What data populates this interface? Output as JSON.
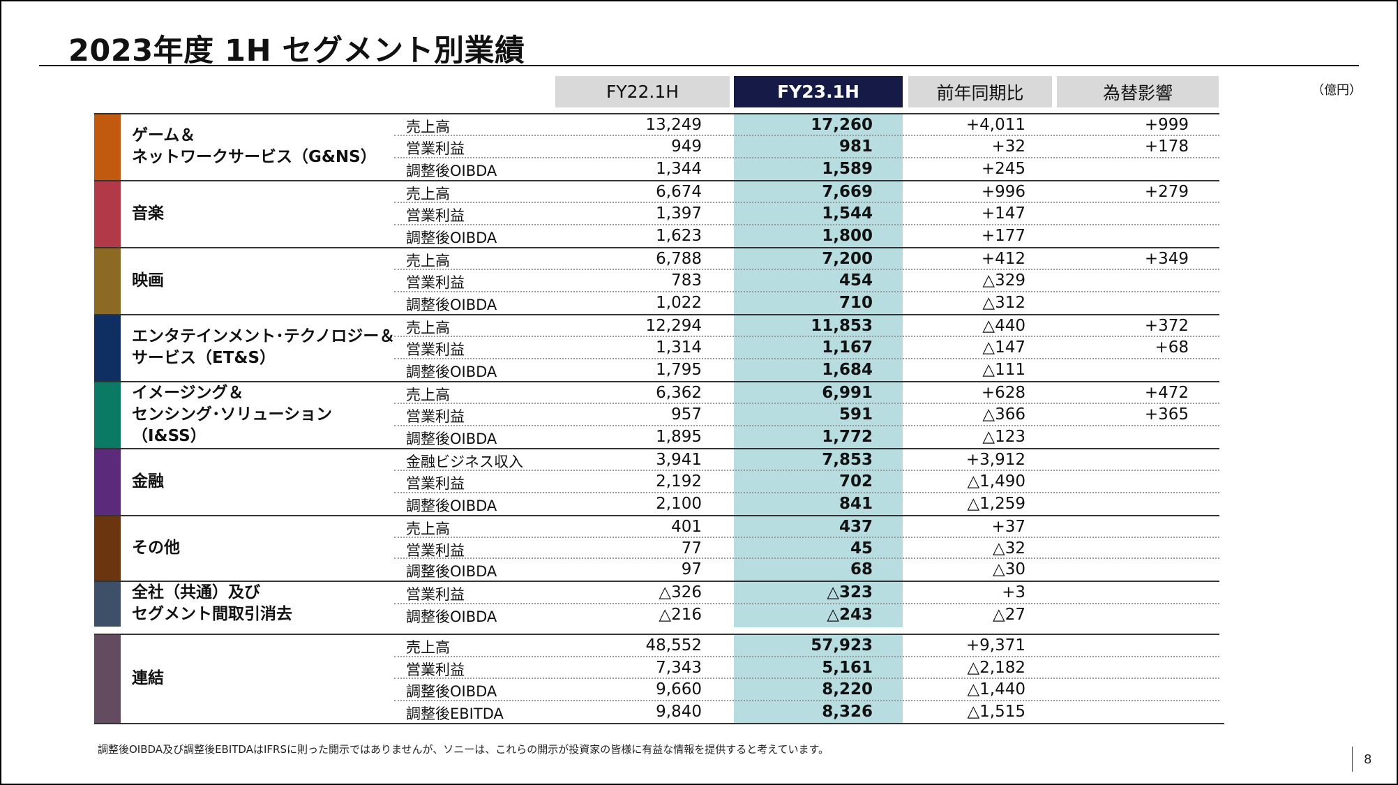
{
  "title": "2023年度 1H セグメント別業績",
  "unit": "（億円）",
  "headers": [
    "FY22.1H",
    "FY23.1H",
    "前年同期比",
    "為替影響"
  ],
  "segments": [
    {
      "name": "ゲーム＆\nネットワークサービス（G&NS）",
      "color": "#c15a0e",
      "rows": [
        {
          "metric": "売上高",
          "fy22": "13,249",
          "fy23": "17,260",
          "yoy": "+4,011",
          "fx": "+999"
        },
        {
          "metric": "営業利益",
          "fy22": "949",
          "fy23": "981",
          "yoy": "+32",
          "fx": "+178"
        },
        {
          "metric": "調整後OIBDA",
          "fy22": "1,344",
          "fy23": "1,589",
          "yoy": "+245",
          "fx": ""
        }
      ]
    },
    {
      "name": "音楽",
      "color": "#b23a48",
      "rows": [
        {
          "metric": "売上高",
          "fy22": "6,674",
          "fy23": "7,669",
          "yoy": "+996",
          "fx": "+279"
        },
        {
          "metric": "営業利益",
          "fy22": "1,397",
          "fy23": "1,544",
          "yoy": "+147",
          "fx": ""
        },
        {
          "metric": "調整後OIBDA",
          "fy22": "1,623",
          "fy23": "1,800",
          "yoy": "+177",
          "fx": ""
        }
      ]
    },
    {
      "name": "映画",
      "color": "#8c6a23",
      "rows": [
        {
          "metric": "売上高",
          "fy22": "6,788",
          "fy23": "7,200",
          "yoy": "+412",
          "fx": "+349"
        },
        {
          "metric": "営業利益",
          "fy22": "783",
          "fy23": "454",
          "yoy": "△329",
          "fx": ""
        },
        {
          "metric": "調整後OIBDA",
          "fy22": "1,022",
          "fy23": "710",
          "yoy": "△312",
          "fx": ""
        }
      ]
    },
    {
      "name": "エンタテインメント･テクノロジー＆\nサービス（ET&S）",
      "color": "#0f2f63",
      "rows": [
        {
          "metric": "売上高",
          "fy22": "12,294",
          "fy23": "11,853",
          "yoy": "△440",
          "fx": "+372"
        },
        {
          "metric": "営業利益",
          "fy22": "1,314",
          "fy23": "1,167",
          "yoy": "△147",
          "fx": "+68"
        },
        {
          "metric": "調整後OIBDA",
          "fy22": "1,795",
          "fy23": "1,684",
          "yoy": "△111",
          "fx": ""
        }
      ]
    },
    {
      "name": "イメージング＆\nセンシング･ソリューション\n（I&SS）",
      "color": "#0b7a64",
      "rows": [
        {
          "metric": "売上高",
          "fy22": "6,362",
          "fy23": "6,991",
          "yoy": "+628",
          "fx": "+472"
        },
        {
          "metric": "営業利益",
          "fy22": "957",
          "fy23": "591",
          "yoy": "△366",
          "fx": "+365"
        },
        {
          "metric": "調整後OIBDA",
          "fy22": "1,895",
          "fy23": "1,772",
          "yoy": "△123",
          "fx": ""
        }
      ]
    },
    {
      "name": "金融",
      "color": "#5b2a7a",
      "rows": [
        {
          "metric": "金融ビジネス収入",
          "fy22": "3,941",
          "fy23": "7,853",
          "yoy": "+3,912",
          "fx": ""
        },
        {
          "metric": "営業利益",
          "fy22": "2,192",
          "fy23": "702",
          "yoy": "△1,490",
          "fx": ""
        },
        {
          "metric": "調整後OIBDA",
          "fy22": "2,100",
          "fy23": "841",
          "yoy": "△1,259",
          "fx": ""
        }
      ]
    },
    {
      "name": "その他",
      "color": "#6b3510",
      "rows": [
        {
          "metric": "売上高",
          "fy22": "401",
          "fy23": "437",
          "yoy": "+37",
          "fx": ""
        },
        {
          "metric": "営業利益",
          "fy22": "77",
          "fy23": "45",
          "yoy": "△32",
          "fx": ""
        },
        {
          "metric": "調整後OIBDA",
          "fy22": "97",
          "fy23": "68",
          "yoy": "△30",
          "fx": ""
        }
      ]
    },
    {
      "name": "全社（共通）及び\nセグメント間取引消去",
      "color": "#3d5068",
      "rows": [
        {
          "metric": "営業利益",
          "fy22": "△326",
          "fy23": "△323",
          "yoy": "+3",
          "fx": ""
        },
        {
          "metric": "調整後OIBDA",
          "fy22": "△216",
          "fy23": "△243",
          "yoy": "△27",
          "fx": ""
        }
      ]
    },
    {
      "name": "連結",
      "color": "#634c60",
      "rows": [
        {
          "metric": "売上高",
          "fy22": "48,552",
          "fy23": "57,923",
          "yoy": "+9,371",
          "fx": ""
        },
        {
          "metric": "営業利益",
          "fy22": "7,343",
          "fy23": "5,161",
          "yoy": "△2,182",
          "fx": ""
        },
        {
          "metric": "調整後OIBDA",
          "fy22": "9,660",
          "fy23": "8,220",
          "yoy": "△1,440",
          "fx": ""
        },
        {
          "metric": "調整後EBITDA",
          "fy22": "9,840",
          "fy23": "8,326",
          "yoy": "△1,515",
          "fx": ""
        }
      ]
    }
  ],
  "footnote": "調整後OIBDA及び調整後EBITDAはIFRSに則った開示ではありませんが、ソニーは、これらの開示が投資家の皆様に有益な情報を提供すると考えています。",
  "page_number": "8"
}
